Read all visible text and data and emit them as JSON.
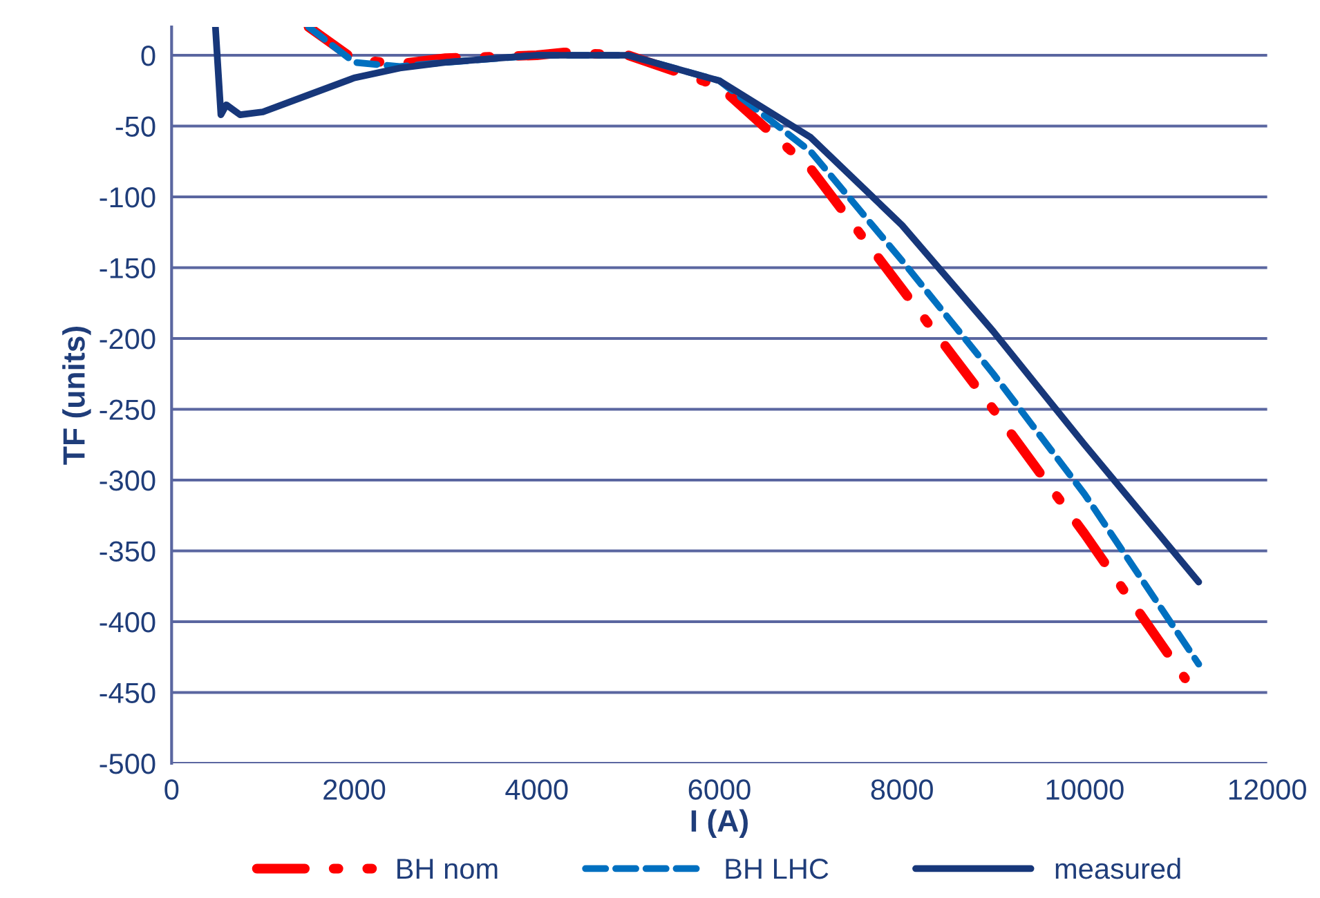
{
  "chart_data": {
    "type": "line",
    "xlabel": "I (A)",
    "ylabel": "TF (units)",
    "xlim": [
      0,
      12000
    ],
    "xticks": [
      0,
      2000,
      4000,
      6000,
      8000,
      10000,
      12000
    ],
    "ylim": [
      -500,
      20
    ],
    "yticks": [
      0,
      -50,
      -100,
      -150,
      -200,
      -250,
      -300,
      -350,
      -400,
      -450,
      -500
    ],
    "grid": "y",
    "legend": "bottom",
    "marker": "none",
    "series": [
      {
        "name": "BH nom",
        "color": "#ff0000",
        "line_style": "dashdot",
        "x": [
          1500,
          2000,
          2500,
          3000,
          4000,
          4300,
          5000,
          6000,
          7000,
          8000,
          9000,
          10000,
          11100
        ],
        "values": [
          20,
          -3,
          -6,
          -2,
          0,
          2,
          0,
          -22,
          -80,
          -165,
          -250,
          -338,
          -440
        ]
      },
      {
        "name": "BH LHC",
        "color": "#0070c0",
        "line_style": "dashed",
        "x": [
          1500,
          1700,
          2000,
          2500,
          3000,
          4000,
          5000,
          6000,
          7000,
          8000,
          9000,
          10000,
          11250
        ],
        "values": [
          20,
          10,
          -5,
          -8,
          -5,
          0,
          0,
          -18,
          -68,
          -145,
          -225,
          -310,
          -430
        ]
      },
      {
        "name": "measured",
        "color": "#17377a",
        "line_style": "solid",
        "x": [
          480,
          540,
          600,
          750,
          1000,
          1500,
          2000,
          2500,
          3000,
          4000,
          5000,
          6000,
          7000,
          8000,
          9000,
          10000,
          11250
        ],
        "values": [
          20,
          -42,
          -35,
          -42,
          -40,
          -28,
          -16,
          -9,
          -5,
          0,
          0,
          -18,
          -58,
          -120,
          -195,
          -275,
          -372
        ]
      }
    ]
  }
}
